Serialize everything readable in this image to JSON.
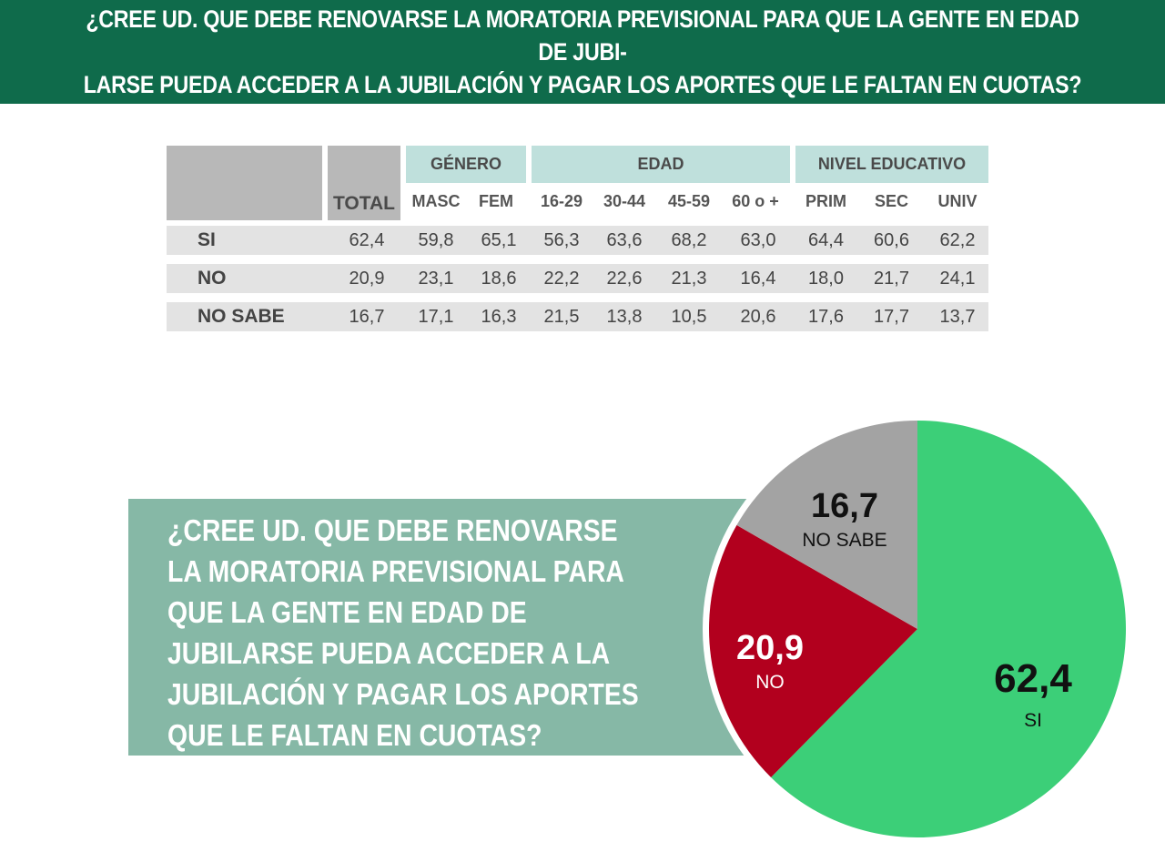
{
  "header": {
    "title_line1": "¿CREE UD. QUE DEBE RENOVARSE LA MORATORIA PREVISIONAL PARA QUE LA GENTE EN EDAD DE JUBI-",
    "title_line2": "LARSE PUEDA ACCEDER A LA JUBILACIÓN Y PAGAR LOS APORTES QUE LE FALTAN EN CUOTAS?"
  },
  "table": {
    "groups": {
      "genero": "GÉNERO",
      "edad": "EDAD",
      "nivel": "NIVEL EDUCATIVO"
    },
    "columns": [
      "TOTAL",
      "MASC",
      "FEM",
      "16-29",
      "30-44",
      "45-59",
      "60 o +",
      "PRIM",
      "SEC",
      "UNIV"
    ],
    "rows": [
      {
        "label": "SI",
        "values": [
          "62,4",
          "59,8",
          "65,1",
          "56,3",
          "63,6",
          "68,2",
          "63,0",
          "64,4",
          "60,6",
          "62,2"
        ]
      },
      {
        "label": "NO",
        "values": [
          "20,9",
          "23,1",
          "18,6",
          "22,2",
          "22,6",
          "21,3",
          "16,4",
          "18,0",
          "21,7",
          "24,1"
        ]
      },
      {
        "label": "NO SABE",
        "values": [
          "16,7",
          "17,1",
          "16,3",
          "21,5",
          "13,8",
          "10,5",
          "20,6",
          "17,6",
          "17,7",
          "13,7"
        ]
      }
    ]
  },
  "question": {
    "lines": [
      "¿CREE UD. QUE DEBE RENOVARSE",
      "LA MORATORIA PREVISIONAL PARA",
      "QUE LA GENTE EN EDAD DE",
      "JUBILARSE PUEDA ACCEDER A LA",
      "JUBILACIÓN Y PAGAR LOS APORTES",
      "QUE LE FALTAN EN CUOTAS?"
    ]
  },
  "colors": {
    "header_bg": "#0f6b4b",
    "si": "#3ccf78",
    "no": "#b2001e",
    "no_sabe": "#a3a3a3",
    "question_bg": "#86b8a6",
    "table_group_bg": "#bfe0dc"
  },
  "chart_data": {
    "type": "pie",
    "title": "",
    "slices": [
      {
        "label": "SI",
        "value": 62.4,
        "display": "62,4",
        "color": "#3ccf78"
      },
      {
        "label": "NO",
        "value": 20.9,
        "display": "20,9",
        "color": "#b2001e"
      },
      {
        "label": "NO SABE",
        "value": 16.7,
        "display": "16,7",
        "color": "#a3a3a3"
      }
    ],
    "start": "12 o'clock",
    "direction": "clockwise"
  }
}
